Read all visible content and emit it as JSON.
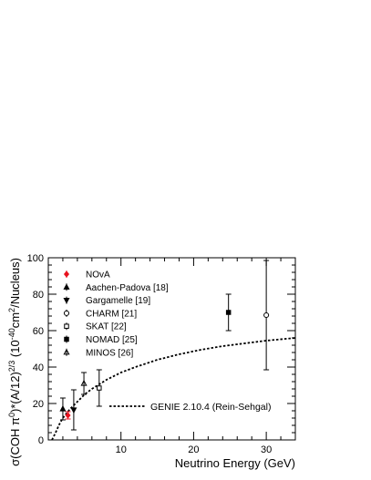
{
  "chart_data": {
    "type": "scatter",
    "title": "",
    "xlabel": "Neutrino Energy (GeV)",
    "ylabel": "σ(COH π⁰)*(A/12)^2/3 (10⁻⁴⁰cm²/Nucleus)",
    "ylabel_parts": {
      "pre": "σ(COH π",
      "sup0": "0",
      "mid": ")*(A/12)",
      "sup1": "2/3",
      "mid2": " (10",
      "sup2": "-40",
      "mid3": "cm",
      "sup3": "2",
      "post": "/Nucleus)"
    },
    "xlim": [
      0,
      34
    ],
    "ylim": [
      0,
      100
    ],
    "x_ticks": [
      10,
      20,
      30
    ],
    "y_ticks": [
      0,
      20,
      40,
      60,
      80,
      100
    ],
    "legend_position": "top-left",
    "series": [
      {
        "name": "NOvA",
        "marker": "diamond-filled",
        "color": "#e8121e",
        "points": [
          {
            "x": 2.7,
            "y": 13.5,
            "yerr": 2
          }
        ]
      },
      {
        "name": "Aachen-Padova [18]",
        "marker": "triangle-up-filled",
        "color": "#000000",
        "points": [
          {
            "x": 2.0,
            "y": 17,
            "yerr": 6
          }
        ]
      },
      {
        "name": "Gargamelle [19]",
        "marker": "triangle-down-filled",
        "color": "#000000",
        "points": [
          {
            "x": 3.5,
            "y": 16.5,
            "yerr": 11
          }
        ]
      },
      {
        "name": "CHARM [21]",
        "marker": "circle-open",
        "color": "#000000",
        "points": [
          {
            "x": 30,
            "y": 68.5,
            "yerr": 30
          }
        ]
      },
      {
        "name": "SKAT [22]",
        "marker": "square-open",
        "color": "#000000",
        "points": [
          {
            "x": 7,
            "y": 28.5,
            "yerr": 10
          }
        ]
      },
      {
        "name": "NOMAD [25]",
        "marker": "square-filled",
        "color": "#000000",
        "points": [
          {
            "x": 24.8,
            "y": 70,
            "yerr": 10
          }
        ]
      },
      {
        "name": "MINOS [26]",
        "marker": "triangle-up-open",
        "color": "#000000",
        "points": [
          {
            "x": 4.9,
            "y": 31,
            "yerr": 6
          }
        ]
      }
    ],
    "model_curve": {
      "name": "GENIE 2.10.4 (Rein-Sehgal)",
      "style": "dotted",
      "x": [
        0.5,
        1,
        1.5,
        2,
        3,
        4,
        5,
        6,
        8,
        10,
        12,
        15,
        18,
        21,
        24,
        27,
        30,
        34
      ],
      "y": [
        0,
        4,
        8.5,
        12,
        17,
        21,
        25,
        28,
        33,
        37,
        40,
        44,
        47,
        49.5,
        51.5,
        53,
        54.5,
        56
      ]
    }
  }
}
